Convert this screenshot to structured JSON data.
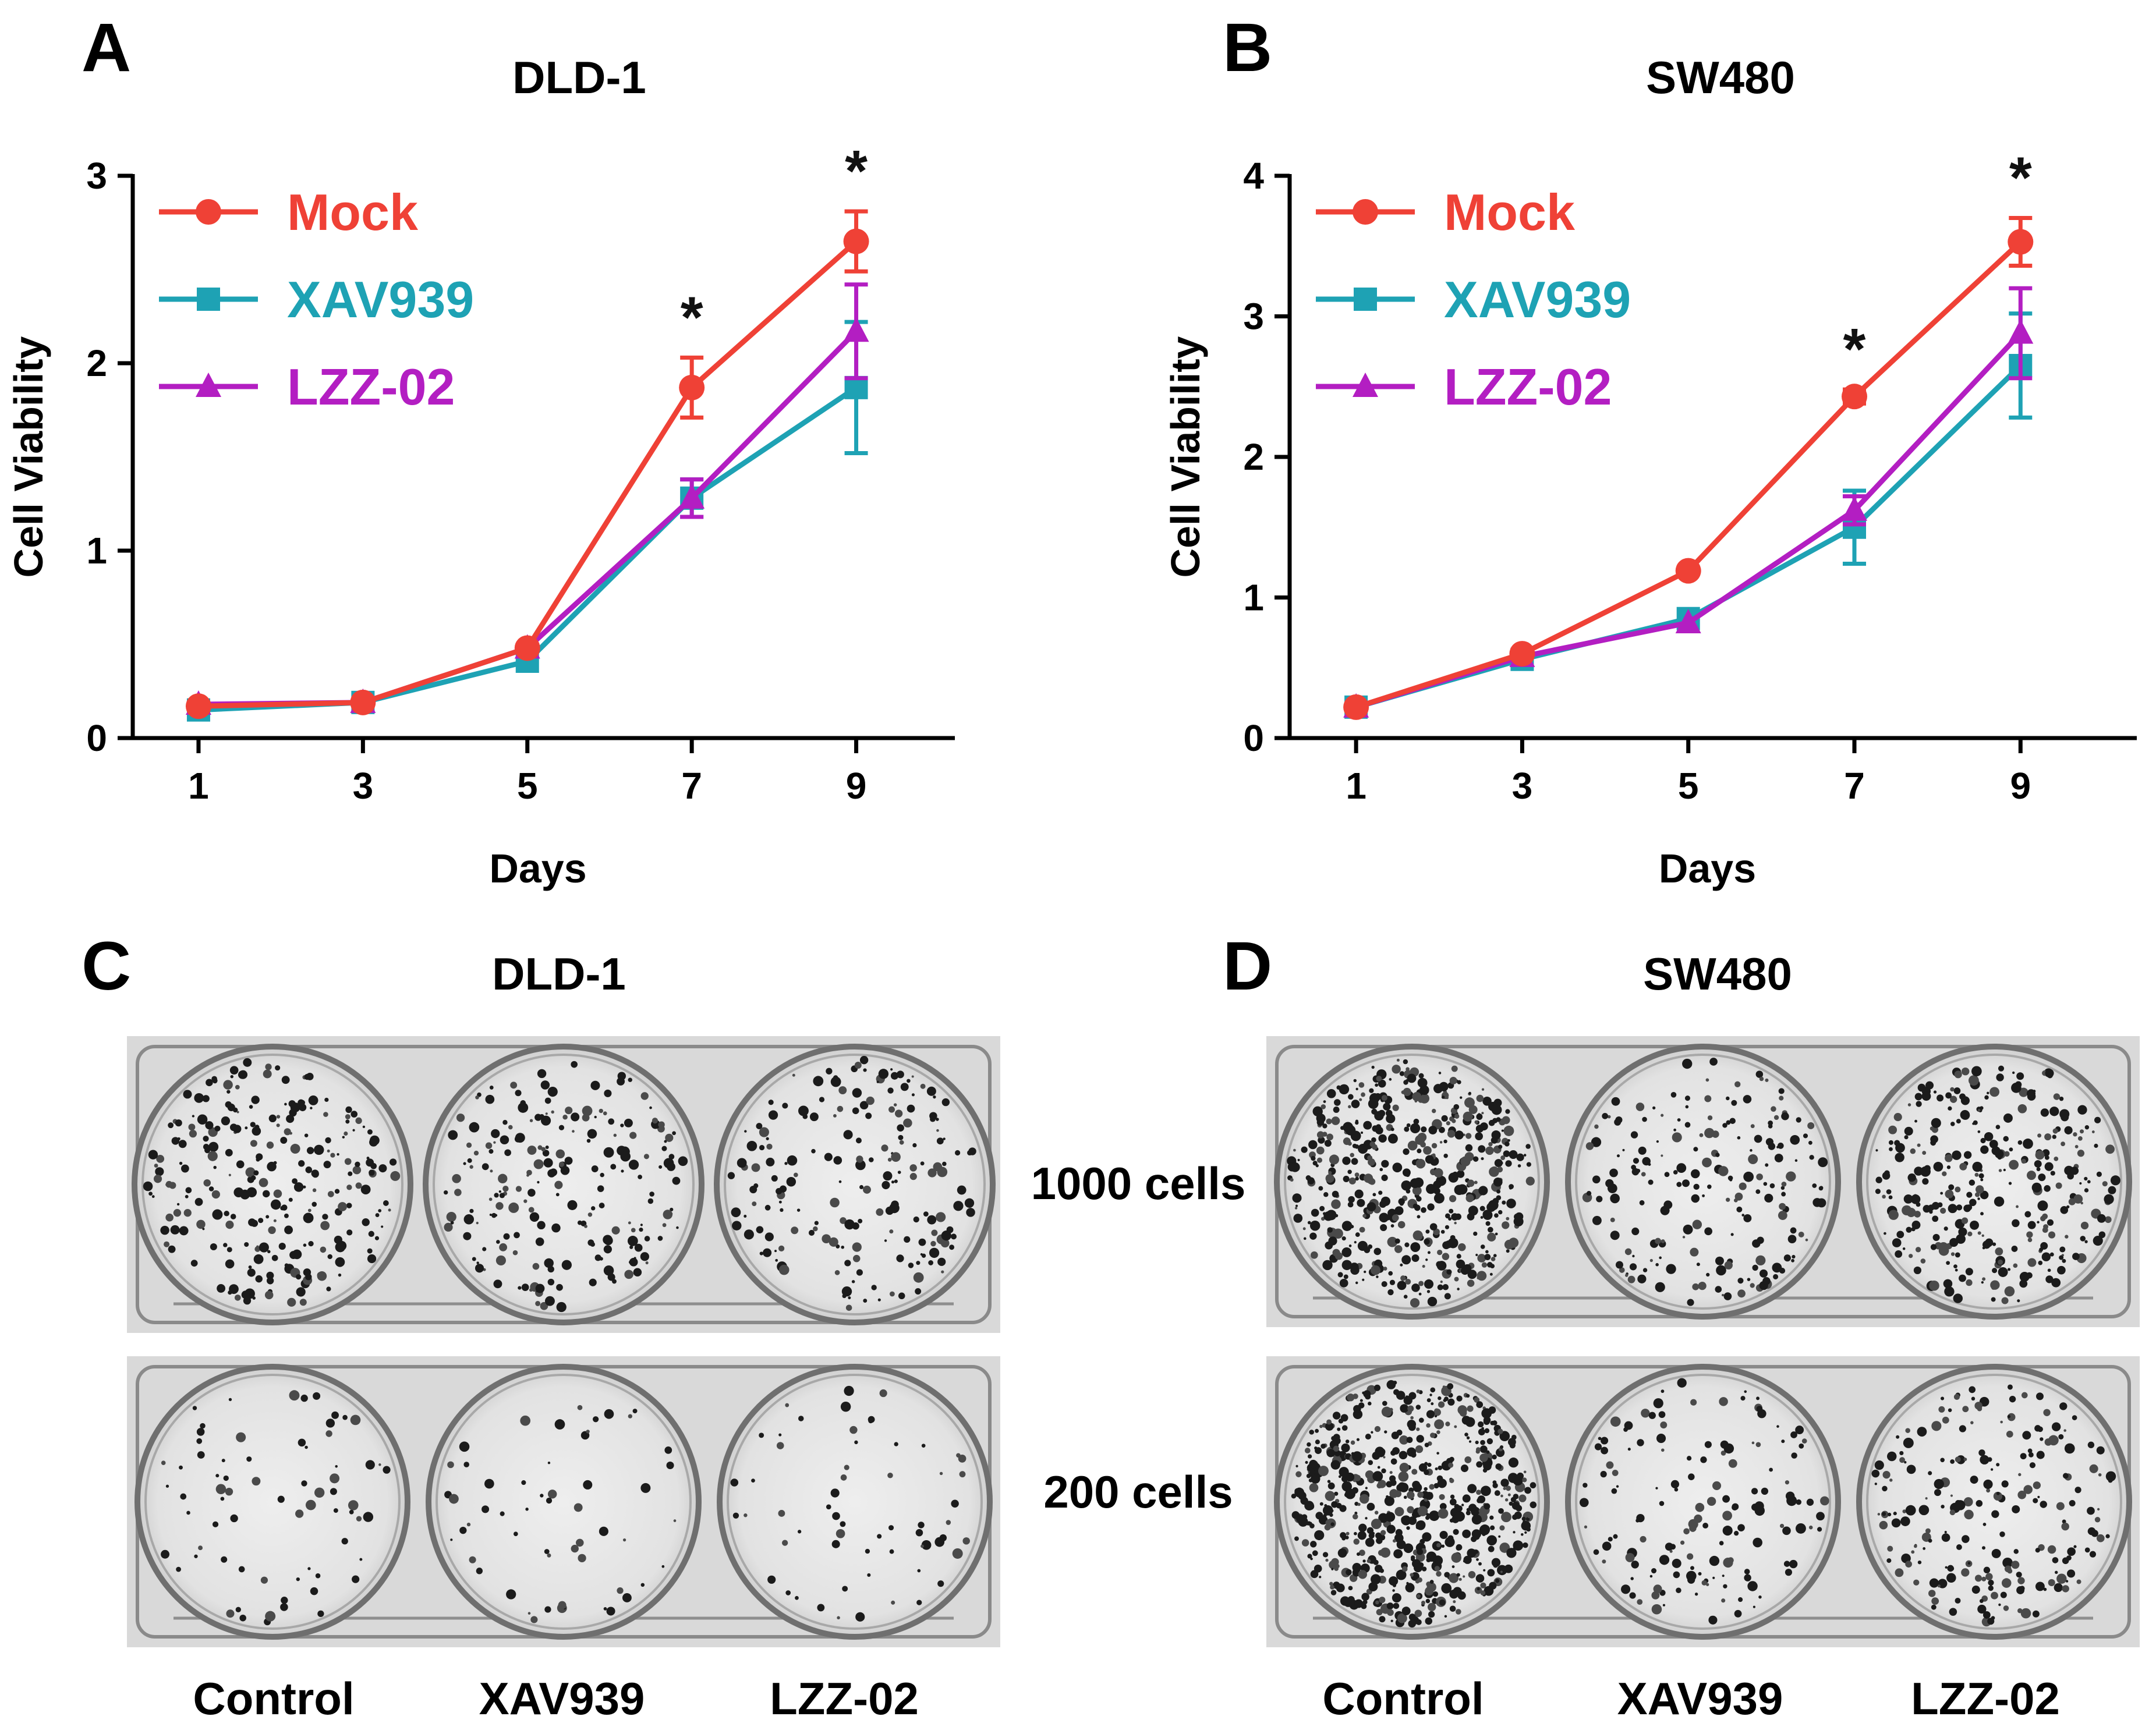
{
  "chart_data": [
    {
      "panel": "A",
      "type": "line",
      "title": "DLD-1",
      "xlabel": "Days",
      "ylabel": "Cell Viability",
      "x": [
        1,
        3,
        5,
        7,
        9
      ],
      "xticks": [
        "1",
        "3",
        "5",
        "7",
        "9"
      ],
      "ylim": [
        0,
        3
      ],
      "yticks": [
        "0",
        "1",
        "2",
        "3"
      ],
      "legend_position": "top-left",
      "series": [
        {
          "name": "Mock",
          "color": "#ef4136",
          "marker": "circle",
          "values": [
            0.17,
            0.19,
            0.48,
            1.87,
            2.65
          ],
          "errors": [
            0.02,
            0.02,
            0.03,
            0.16,
            0.16
          ]
        },
        {
          "name": "XAV939",
          "color": "#1ea2b4",
          "marker": "square",
          "values": [
            0.15,
            0.19,
            0.41,
            1.28,
            1.87
          ],
          "errors": [
            0.02,
            0.02,
            0.03,
            0.1,
            0.35
          ]
        },
        {
          "name": "LZZ-02",
          "color": "#b31ec2",
          "marker": "triangle",
          "values": [
            0.18,
            0.19,
            0.48,
            1.28,
            2.17
          ],
          "errors": [
            0.02,
            0.02,
            0.03,
            0.1,
            0.25
          ]
        }
      ],
      "annotations": [
        {
          "x": 7,
          "text": "*"
        },
        {
          "x": 9,
          "text": "*"
        }
      ]
    },
    {
      "panel": "B",
      "type": "line",
      "title": "SW480",
      "xlabel": "Days",
      "ylabel": "Cell Viability",
      "x": [
        1,
        3,
        5,
        7,
        9
      ],
      "xticks": [
        "1",
        "3",
        "5",
        "7",
        "9"
      ],
      "ylim": [
        0,
        4
      ],
      "yticks": [
        "0",
        "1",
        "2",
        "3",
        "4"
      ],
      "legend_position": "top-left",
      "series": [
        {
          "name": "Mock",
          "color": "#ef4136",
          "marker": "circle",
          "values": [
            0.22,
            0.6,
            1.19,
            2.43,
            3.53
          ],
          "errors": [
            0.02,
            0.03,
            0.03,
            0.05,
            0.17
          ]
        },
        {
          "name": "XAV939",
          "color": "#1ea2b4",
          "marker": "square",
          "values": [
            0.22,
            0.56,
            0.85,
            1.5,
            2.65
          ],
          "errors": [
            0.02,
            0.03,
            0.04,
            0.26,
            0.37
          ]
        },
        {
          "name": "LZZ-02",
          "color": "#b31ec2",
          "marker": "triangle",
          "values": [
            0.22,
            0.58,
            0.82,
            1.62,
            2.88
          ],
          "errors": [
            0.02,
            0.03,
            0.04,
            0.1,
            0.32
          ]
        }
      ],
      "annotations": [
        {
          "x": 7,
          "text": "*"
        },
        {
          "x": 9,
          "text": "*"
        }
      ]
    }
  ],
  "panels": {
    "A": {
      "letter": "A"
    },
    "B": {
      "letter": "B"
    },
    "C": {
      "letter": "C",
      "title": "DLD-1"
    },
    "D": {
      "letter": "D",
      "title": "SW480"
    }
  },
  "colony_assay": {
    "row_labels": [
      "1000 cells",
      "200 cells"
    ],
    "column_labels": [
      "Control",
      "XAV939",
      "LZZ-02"
    ]
  }
}
